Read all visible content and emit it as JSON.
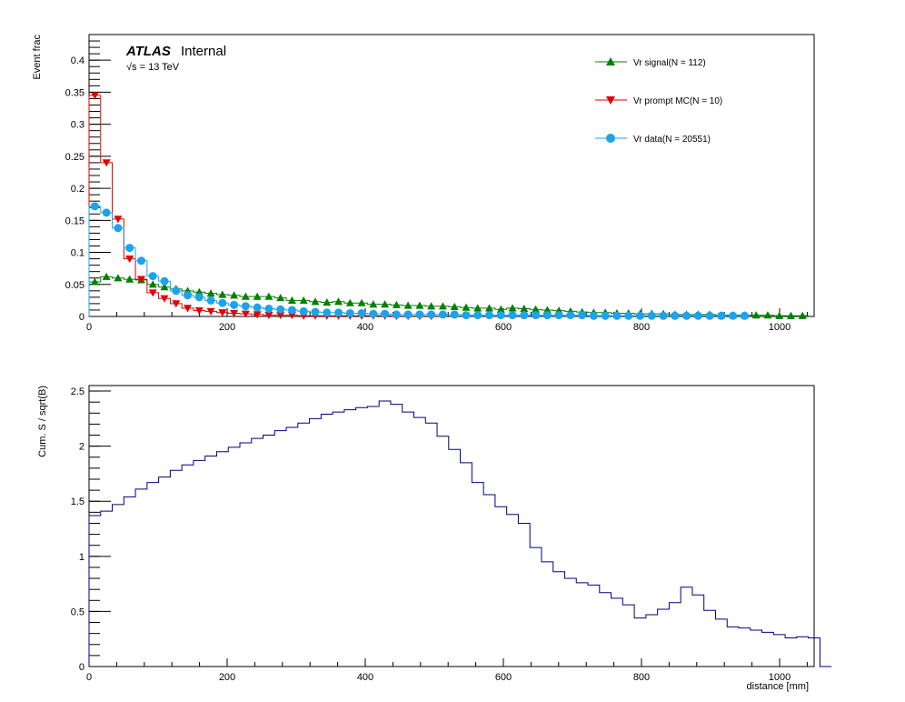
{
  "chart_data": [
    {
      "type": "line",
      "panel": "top",
      "ylabel": "Event frac",
      "xlim": [
        0,
        1050
      ],
      "ylim": [
        0,
        0.44
      ],
      "x_ticks": [
        "0",
        "200",
        "400",
        "600",
        "800",
        "1000"
      ],
      "y_ticks": [
        "0",
        "0.05",
        "0.1",
        "0.15",
        "0.2",
        "0.25",
        "0.3",
        "0.35",
        "0.4"
      ],
      "y_tick_values": [
        0,
        0.05,
        0.1,
        0.15,
        0.2,
        0.25,
        0.3,
        0.35,
        0.4
      ],
      "x_tick_values": [
        0,
        200,
        400,
        600,
        800,
        1000
      ],
      "annotation_bold": "ATLAS",
      "annotation_rest": "Internal",
      "annotation_energy": "√s = 13 TeV",
      "legend_position": "top-right",
      "bin_width": 16.8,
      "series": [
        {
          "name": "Vr signal(N = 112)",
          "color": "#008000",
          "marker": "triangle-up",
          "values": [
            0.054,
            0.062,
            0.06,
            0.058,
            0.057,
            0.05,
            0.046,
            0.043,
            0.04,
            0.038,
            0.036,
            0.034,
            0.033,
            0.031,
            0.031,
            0.031,
            0.029,
            0.025,
            0.025,
            0.023,
            0.022,
            0.023,
            0.021,
            0.021,
            0.019,
            0.019,
            0.018,
            0.017,
            0.017,
            0.016,
            0.016,
            0.015,
            0.014,
            0.013,
            0.013,
            0.011,
            0.013,
            0.012,
            0.011,
            0.01,
            0.009,
            0.008,
            0.007,
            0.006,
            0.006,
            0.005,
            0.005,
            0.004,
            0.004,
            0.004,
            0.003,
            0.003,
            0.003,
            0.003,
            0.002,
            0.002,
            0.002,
            0.002,
            0.002,
            0.001,
            0.001,
            0.001
          ]
        },
        {
          "name": "Vr prompt MC(N = 10)",
          "color": "#e00000",
          "marker": "triangle-down",
          "values": [
            0.345,
            0.24,
            0.152,
            0.09,
            0.058,
            0.037,
            0.028,
            0.02,
            0.013,
            0.009,
            0.008,
            0.006,
            0.005,
            0.004,
            0.003,
            0.002,
            0.002,
            0.002,
            0.001,
            0.001,
            0.001,
            0.001,
            0.001,
            0.001,
            0.001,
            0.001,
            0.0005,
            0.0005,
            0.0005,
            0.0005
          ]
        },
        {
          "name": "Vr data(N = 20551)",
          "color": "#1ca3ec",
          "marker": "circle",
          "values": [
            0.172,
            0.162,
            0.138,
            0.107,
            0.087,
            0.063,
            0.055,
            0.04,
            0.033,
            0.03,
            0.025,
            0.021,
            0.018,
            0.016,
            0.014,
            0.012,
            0.011,
            0.01,
            0.008,
            0.007,
            0.006,
            0.006,
            0.005,
            0.005,
            0.004,
            0.004,
            0.003,
            0.003,
            0.003,
            0.003,
            0.003,
            0.003,
            0.002,
            0.002,
            0.002,
            0.002,
            0.002,
            0.002,
            0.002,
            0.002,
            0.002,
            0.002,
            0.002,
            0.001,
            0.001,
            0.001,
            0.001,
            0.001,
            0.001,
            0.001,
            0.001,
            0.001,
            0.001,
            0.001,
            0.001,
            0.001,
            0.001
          ]
        }
      ]
    },
    {
      "type": "line",
      "panel": "bottom",
      "ylabel": "Cum. S / sqrt(B)",
      "xlabel": "distance [mm]",
      "xlim": [
        0,
        1050
      ],
      "ylim": [
        0,
        2.55
      ],
      "x_ticks": [
        "0",
        "200",
        "400",
        "600",
        "800",
        "1000"
      ],
      "x_tick_values": [
        0,
        200,
        400,
        600,
        800,
        1000
      ],
      "y_ticks": [
        "0",
        "0.5",
        "1",
        "1.5",
        "2",
        "2.5"
      ],
      "y_tick_values": [
        0,
        0.5,
        1,
        1.5,
        2,
        2.5
      ],
      "color": "#000080",
      "bin_width": 16.8,
      "values": [
        1.37,
        1.41,
        1.47,
        1.54,
        1.61,
        1.67,
        1.72,
        1.78,
        1.83,
        1.87,
        1.91,
        1.95,
        1.99,
        2.03,
        2.07,
        2.1,
        2.14,
        2.17,
        2.21,
        2.25,
        2.29,
        2.31,
        2.33,
        2.35,
        2.36,
        2.41,
        2.38,
        2.31,
        2.26,
        2.21,
        2.09,
        1.97,
        1.85,
        1.67,
        1.56,
        1.45,
        1.38,
        1.3,
        1.08,
        0.95,
        0.86,
        0.8,
        0.76,
        0.74,
        0.67,
        0.62,
        0.56,
        0.44,
        0.47,
        0.52,
        0.58,
        0.72,
        0.65,
        0.51,
        0.43,
        0.36,
        0.35,
        0.33,
        0.31,
        0.29,
        0.26,
        0.27,
        0.26,
        0
      ]
    }
  ]
}
